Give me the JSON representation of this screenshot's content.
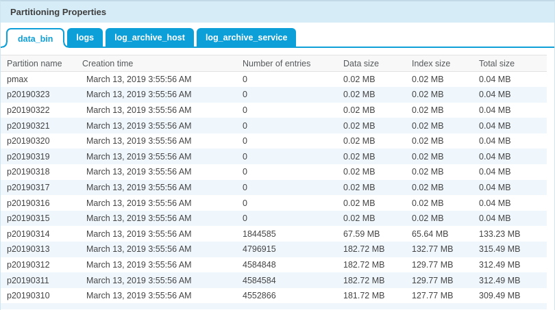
{
  "panel": {
    "title": "Partitioning Properties"
  },
  "tabs": [
    {
      "label": "data_bin",
      "active": true
    },
    {
      "label": "logs",
      "active": false
    },
    {
      "label": "log_archive_host",
      "active": false
    },
    {
      "label": "log_archive_service",
      "active": false
    }
  ],
  "table": {
    "columns": [
      "Partition name",
      "Creation time",
      "Number of entries",
      "Data size",
      "Index size",
      "Total size"
    ],
    "rows": [
      [
        "pmax",
        "March 13, 2019 3:55:56 AM",
        "0",
        "0.02 MB",
        "0.02 MB",
        "0.04 MB"
      ],
      [
        "p20190323",
        "March 13, 2019 3:55:56 AM",
        "0",
        "0.02 MB",
        "0.02 MB",
        "0.04 MB"
      ],
      [
        "p20190322",
        "March 13, 2019 3:55:56 AM",
        "0",
        "0.02 MB",
        "0.02 MB",
        "0.04 MB"
      ],
      [
        "p20190321",
        "March 13, 2019 3:55:56 AM",
        "0",
        "0.02 MB",
        "0.02 MB",
        "0.04 MB"
      ],
      [
        "p20190320",
        "March 13, 2019 3:55:56 AM",
        "0",
        "0.02 MB",
        "0.02 MB",
        "0.04 MB"
      ],
      [
        "p20190319",
        "March 13, 2019 3:55:56 AM",
        "0",
        "0.02 MB",
        "0.02 MB",
        "0.04 MB"
      ],
      [
        "p20190318",
        "March 13, 2019 3:55:56 AM",
        "0",
        "0.02 MB",
        "0.02 MB",
        "0.04 MB"
      ],
      [
        "p20190317",
        "March 13, 2019 3:55:56 AM",
        "0",
        "0.02 MB",
        "0.02 MB",
        "0.04 MB"
      ],
      [
        "p20190316",
        "March 13, 2019 3:55:56 AM",
        "0",
        "0.02 MB",
        "0.02 MB",
        "0.04 MB"
      ],
      [
        "p20190315",
        "March 13, 2019 3:55:56 AM",
        "0",
        "0.02 MB",
        "0.02 MB",
        "0.04 MB"
      ],
      [
        "p20190314",
        "March 13, 2019 3:55:56 AM",
        "1844585",
        "67.59 MB",
        "65.64 MB",
        "133.23 MB"
      ],
      [
        "p20190313",
        "March 13, 2019 3:55:56 AM",
        "4796915",
        "182.72 MB",
        "132.77 MB",
        "315.49 MB"
      ],
      [
        "p20190312",
        "March 13, 2019 3:55:56 AM",
        "4584848",
        "182.72 MB",
        "129.77 MB",
        "312.49 MB"
      ],
      [
        "p20190311",
        "March 13, 2019 3:55:56 AM",
        "4584584",
        "182.72 MB",
        "129.77 MB",
        "312.49 MB"
      ],
      [
        "p20190310",
        "March 13, 2019 3:55:56 AM",
        "4552866",
        "181.72 MB",
        "127.77 MB",
        "309.49 MB"
      ]
    ]
  },
  "colors": {
    "accent": "#0d9fd8",
    "header_band": "#d6edf7",
    "row_stripe": "#eff7fd",
    "table_header_bg": "#f8f8f8",
    "cell_text": "#444444"
  }
}
